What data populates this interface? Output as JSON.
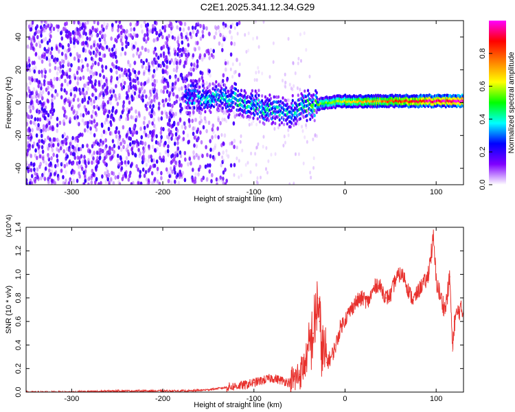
{
  "title": "C2E1.2025.341.12.34.G29",
  "chart_data": [
    {
      "type": "heatmap",
      "xlabel": "Height of straight line (km)",
      "ylabel": "Frequency (Hz)",
      "xlim": [
        -350,
        130
      ],
      "ylim": [
        -50,
        50
      ],
      "xticks": [
        -300,
        -200,
        -100,
        0,
        100
      ],
      "yticks": [
        -40,
        -20,
        0,
        20,
        40
      ],
      "colorbar": {
        "label": "Normalized spectral amplitude",
        "range": [
          0.0,
          1.0
        ],
        "ticks": [
          0.0,
          0.2,
          0.4,
          0.6,
          0.8
        ],
        "colormap": [
          "#ffffff",
          "#7f00ff",
          "#0000ff",
          "#00ffff",
          "#00ff00",
          "#ffff00",
          "#ff7f00",
          "#ff0000",
          "#ff00ff"
        ]
      },
      "features": {
        "noise_region_x": [
          -350,
          -140
        ],
        "noise_level": 0.25,
        "track": [
          {
            "x": -175,
            "freq": 4,
            "amp": 0.3
          },
          {
            "x": -150,
            "freq": 3,
            "amp": 0.35
          },
          {
            "x": -120,
            "freq": 2,
            "amp": 0.4
          },
          {
            "x": -90,
            "freq": -3,
            "amp": 0.4
          },
          {
            "x": -60,
            "freq": -6,
            "amp": 0.35
          },
          {
            "x": -40,
            "freq": -2,
            "amp": 0.45
          },
          {
            "x": -20,
            "freq": 0,
            "amp": 0.55
          },
          {
            "x": 0,
            "freq": 1,
            "amp": 0.65
          },
          {
            "x": 40,
            "freq": 1,
            "amp": 0.75
          },
          {
            "x": 80,
            "freq": 1,
            "amp": 0.9
          },
          {
            "x": 130,
            "freq": 1,
            "amp": 1.0
          }
        ]
      }
    },
    {
      "type": "line",
      "xlabel": "Height of straight line (km)",
      "ylabel": "SNR (10 * v/v)",
      "y_multiplier": "(x10^4)",
      "xlim": [
        -350,
        130
      ],
      "ylim": [
        0,
        1.4
      ],
      "xticks": [
        -300,
        -200,
        -100,
        0,
        100
      ],
      "yticks": [
        0.0,
        0.2,
        0.4,
        0.6,
        0.8,
        1.0,
        1.2,
        1.4
      ],
      "series": [
        {
          "color": "#e8312d",
          "x": [
            -350,
            -300,
            -250,
            -200,
            -170,
            -150,
            -130,
            -110,
            -100,
            -90,
            -80,
            -70,
            -60,
            -55,
            -50,
            -45,
            -40,
            -35,
            -32,
            -30,
            -28,
            -25,
            -20,
            -15,
            -10,
            -5,
            0,
            5,
            10,
            15,
            20,
            25,
            30,
            35,
            40,
            45,
            50,
            55,
            60,
            65,
            70,
            75,
            80,
            85,
            90,
            95,
            97,
            100,
            105,
            110,
            115,
            118,
            120,
            125,
            130
          ],
          "y": [
            0.0,
            0.0,
            0.01,
            0.01,
            0.01,
            0.02,
            0.04,
            0.06,
            0.08,
            0.1,
            0.12,
            0.1,
            0.08,
            0.11,
            0.15,
            0.22,
            0.35,
            0.5,
            0.65,
            0.8,
            0.6,
            0.35,
            0.25,
            0.3,
            0.4,
            0.55,
            0.62,
            0.68,
            0.75,
            0.78,
            0.8,
            0.76,
            0.85,
            0.92,
            0.88,
            0.8,
            0.82,
            0.95,
            1.0,
            0.98,
            0.85,
            0.78,
            0.85,
            0.92,
            0.95,
            1.2,
            1.3,
            0.95,
            0.8,
            0.7,
            0.98,
            0.35,
            0.6,
            0.7,
            0.68
          ]
        }
      ]
    }
  ]
}
